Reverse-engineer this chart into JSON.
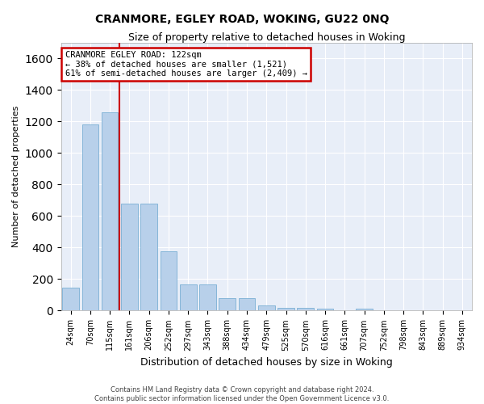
{
  "title": "CRANMORE, EGLEY ROAD, WOKING, GU22 0NQ",
  "subtitle": "Size of property relative to detached houses in Woking",
  "xlabel": "Distribution of detached houses by size in Woking",
  "ylabel": "Number of detached properties",
  "bar_color": "#b8d0ea",
  "bar_edge_color": "#7aafd4",
  "background_color": "#e8eef8",
  "grid_color": "#ffffff",
  "categories": [
    "24sqm",
    "70sqm",
    "115sqm",
    "161sqm",
    "206sqm",
    "252sqm",
    "297sqm",
    "343sqm",
    "388sqm",
    "434sqm",
    "479sqm",
    "525sqm",
    "570sqm",
    "616sqm",
    "661sqm",
    "707sqm",
    "752sqm",
    "798sqm",
    "843sqm",
    "889sqm",
    "934sqm"
  ],
  "values": [
    145,
    1180,
    1260,
    680,
    680,
    375,
    165,
    165,
    80,
    80,
    35,
    20,
    20,
    15,
    0,
    15,
    0,
    0,
    0,
    0,
    0
  ],
  "ylim": [
    0,
    1700
  ],
  "yticks": [
    0,
    200,
    400,
    600,
    800,
    1000,
    1200,
    1400,
    1600
  ],
  "property_line_x": 2.5,
  "annotation_text": "CRANMORE EGLEY ROAD: 122sqm\n← 38% of detached houses are smaller (1,521)\n61% of semi-detached houses are larger (2,409) →",
  "annotation_box_color": "#ffffff",
  "annotation_border_color": "#cc0000",
  "footnote1": "Contains HM Land Registry data © Crown copyright and database right 2024.",
  "footnote2": "Contains public sector information licensed under the Open Government Licence v3.0."
}
